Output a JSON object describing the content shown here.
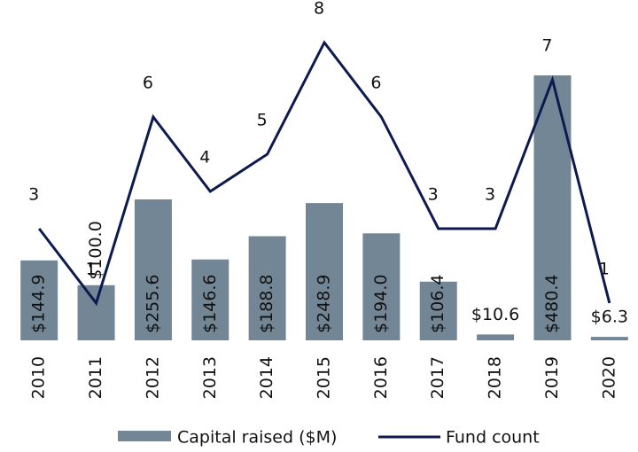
{
  "chart_data": {
    "type": "bar",
    "categories": [
      "2010",
      "2011",
      "2012",
      "2013",
      "2014",
      "2015",
      "2016",
      "2017",
      "2018",
      "2019",
      "2020"
    ],
    "series": [
      {
        "name": "Capital raised ($M)",
        "type": "bar",
        "color": "#738696",
        "values": [
          144.9,
          100.0,
          255.6,
          146.6,
          188.8,
          248.9,
          194.0,
          106.4,
          10.6,
          480.4,
          6.3
        ],
        "value_labels": [
          "$144.9",
          "$100.0",
          "$255.6",
          "$146.6",
          "$188.8",
          "$248.9",
          "$194.0",
          "$106.4",
          "$10.6",
          "$480.4",
          "$6.3"
        ]
      },
      {
        "name": "Fund count",
        "type": "line",
        "color": "#0c1a4e",
        "axis": "y2",
        "values": [
          3,
          1,
          6,
          4,
          5,
          8,
          6,
          3,
          3,
          7,
          1
        ]
      }
    ],
    "ylim": [
      0,
      540
    ],
    "y2lim": [
      0,
      8
    ]
  }
}
